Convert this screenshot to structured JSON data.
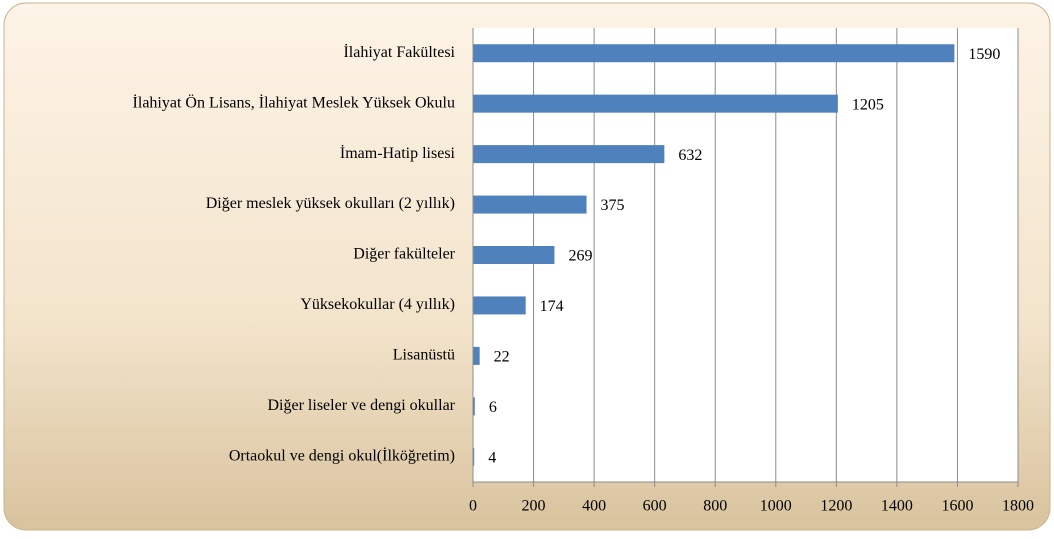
{
  "chart_data": {
    "type": "bar",
    "orientation": "horizontal",
    "categories": [
      "İlahiyat Fakültesi",
      "İlahiyat Ön Lisans, İlahiyat Meslek Yüksek Okulu",
      "İmam-Hatip lisesi",
      "Diğer meslek yüksek okulları (2 yıllık)",
      "Diğer fakülteler",
      "Yüksekokullar (4 yıllık)",
      "Lisanüstü",
      "Diğer liseler ve dengi okullar",
      "Ortaokul ve dengi okul(İlköğretim)"
    ],
    "values": [
      1590,
      1205,
      632,
      375,
      269,
      174,
      22,
      6,
      4
    ],
    "color": "#4f81bd",
    "xlim": [
      0,
      1800
    ],
    "xticks": [
      0,
      200,
      400,
      600,
      800,
      1000,
      1200,
      1400,
      1600,
      1800
    ],
    "grid": true
  }
}
